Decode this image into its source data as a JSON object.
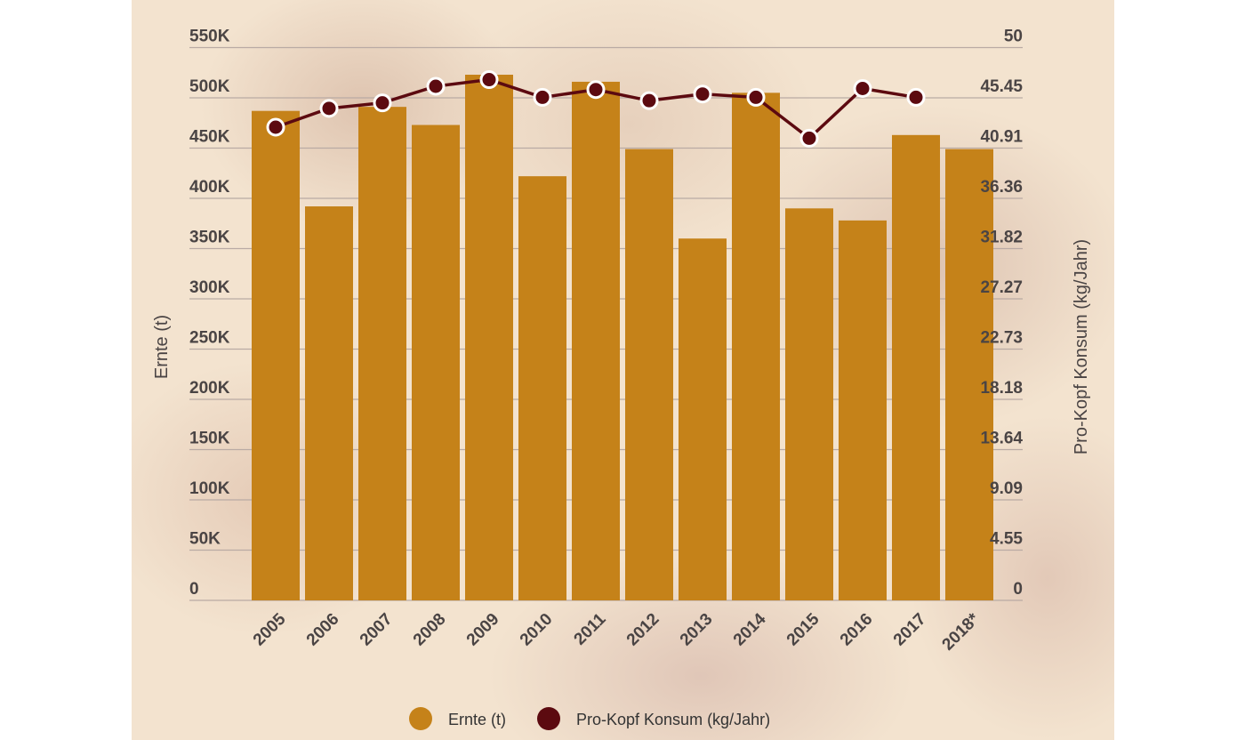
{
  "chart_data": {
    "type": "bar+line",
    "categories": [
      "2005",
      "2006",
      "2007",
      "2008",
      "2009",
      "2010",
      "2011",
      "2012",
      "2013",
      "2014",
      "2015",
      "2016",
      "2017",
      "2018*"
    ],
    "series": [
      {
        "name": "Ernte (t)",
        "type": "bar",
        "axis": "left",
        "color": "#c58219",
        "values": [
          487000,
          392000,
          491000,
          473000,
          523000,
          422000,
          516000,
          449000,
          360000,
          505000,
          390000,
          378000,
          463000,
          449000
        ]
      },
      {
        "name": "Pro-Kopf Konsum (kg/Jahr)",
        "type": "line",
        "axis": "right",
        "color": "#5c0a10",
        "values": [
          42.8,
          44.5,
          45.0,
          46.5,
          47.1,
          45.5,
          46.2,
          45.2,
          45.8,
          45.5,
          41.8,
          46.3,
          45.5,
          null
        ]
      }
    ],
    "ylabel": "Ernte (t)",
    "y2label": "Pro-Kopf Konsum (kg/Jahr)",
    "ylim": [
      0,
      550000
    ],
    "y2lim": [
      0,
      50
    ],
    "yticks": [
      "0",
      "50K",
      "100K",
      "150K",
      "200K",
      "250K",
      "300K",
      "350K",
      "400K",
      "450K",
      "500K",
      "550K"
    ],
    "y2ticks": [
      "0",
      "4.55",
      "9.09",
      "13.64",
      "18.18",
      "22.73",
      "27.27",
      "31.82",
      "36.36",
      "40.91",
      "45.45",
      "50"
    ],
    "grid": true,
    "legend": "bottom"
  }
}
